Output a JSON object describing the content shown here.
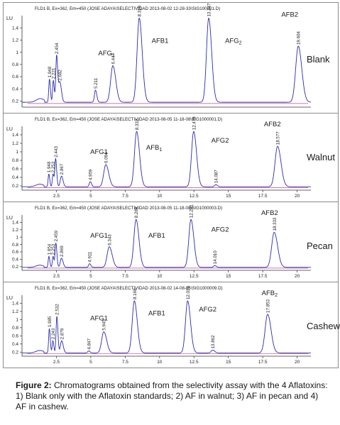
{
  "caption": {
    "label": "Figure 2:",
    "text": "Chromatograms obtained from the selectivity assay with the 4 Aflatoxins: 1) Blank only with the Aflatoxin standards; 2) AF in walnut; 3) AF in pecan and 4) AF in cashew."
  },
  "colors": {
    "trace": "#2b2bb0",
    "baseline": "#c0449a",
    "axis": "#333333",
    "text": "#1a1a1a"
  },
  "chart_data": [
    {
      "type": "line",
      "header": "FLD1 B, Ex=362, Em=450 (JOSE ADAYA\\SELECTIVIDAD 2013-08-02 12-28-33\\SIG100001.D)",
      "sample_label": "Blank",
      "y_unit": "LU",
      "y_ticks": [
        "0.2",
        "0.4",
        "0.6",
        "0.8",
        "1",
        "1.2",
        "1.4"
      ],
      "x_ticks": [],
      "ylim": [
        0.1,
        1.6
      ],
      "xlim": [
        0,
        20.5
      ],
      "baseline": 0.18,
      "peaks": [
        {
          "rt": 1.948,
          "height": 0.38,
          "width": 0.07
        },
        {
          "rt": 2.221,
          "height": 0.36,
          "width": 0.07
        },
        {
          "rt": 2.454,
          "height": 0.77,
          "width": 0.08
        },
        {
          "rt": 2.682,
          "height": 0.33,
          "width": 0.12
        },
        {
          "rt": 5.211,
          "height": 0.2,
          "width": 0.1
        },
        {
          "rt": 6.447,
          "height": 0.6,
          "width": 0.22
        },
        {
          "rt": 8.319,
          "height": 1.38,
          "width": 0.22
        },
        {
          "rt": 13.247,
          "height": 1.38,
          "width": 0.22
        },
        {
          "rt": 19.604,
          "height": 0.92,
          "width": 0.26
        }
      ],
      "compound_labels": [
        {
          "text": "AFG",
          "sub": "1",
          "rt": 6.0,
          "lu": 0.95
        },
        {
          "text": "AFB1",
          "rt": 9.8,
          "lu": 1.15
        },
        {
          "text": "AFG",
          "sub": "2",
          "rt": 15.0,
          "lu": 1.15
        },
        {
          "text": "AFB2",
          "rt": 19.0,
          "lu": 1.58
        }
      ]
    },
    {
      "type": "line",
      "header": "FLD1 B, Ex=362, Em=450 (JOSE ADAYA\\SELECTIVIDAD 2013-08-05 11-18-08\\SIG1000001.D)",
      "sample_label": "Walnut",
      "y_unit": "LU",
      "y_ticks": [
        "0.2",
        "0.4",
        "0.6",
        "0.8",
        "1",
        "1.2",
        "1.4"
      ],
      "x_ticks": [
        "2.5",
        "5",
        "7.5",
        "10",
        "12.5",
        "15",
        "17.5",
        "20"
      ],
      "ylim": [
        0.1,
        1.6
      ],
      "xlim": [
        0,
        21
      ],
      "baseline": 0.18,
      "peaks": [
        {
          "rt": 1.948,
          "height": 0.3,
          "width": 0.07
        },
        {
          "rt": 2.253,
          "height": 0.3,
          "width": 0.07
        },
        {
          "rt": 2.443,
          "height": 0.66,
          "width": 0.08
        },
        {
          "rt": 2.867,
          "height": 0.25,
          "width": 0.12
        },
        {
          "rt": 4.959,
          "height": 0.12,
          "width": 0.1
        },
        {
          "rt": 6.094,
          "height": 0.52,
          "width": 0.22
        },
        {
          "rt": 8.332,
          "height": 1.3,
          "width": 0.22
        },
        {
          "rt": 12.479,
          "height": 1.3,
          "width": 0.22
        },
        {
          "rt": 14.087,
          "height": 0.05,
          "width": 0.12
        },
        {
          "rt": 18.577,
          "height": 0.95,
          "width": 0.26
        }
      ],
      "compound_labels": [
        {
          "text": "AFG1",
          "rt": 5.6,
          "lu": 0.95
        },
        {
          "text": "AFB",
          "sub": "1",
          "rt": 9.6,
          "lu": 1.05
        },
        {
          "text": "AFG2",
          "rt": 14.4,
          "lu": 1.22
        },
        {
          "text": "AFB2",
          "rt": 18.2,
          "lu": 1.6
        }
      ]
    },
    {
      "type": "line",
      "header": "FLD1 B, Ex=362, Em=450 (JOSE ADAYA\\SELECTIVIDAD 2013-08-05 11-18-08\\SIG1000003.D)",
      "sample_label": "Pecan",
      "y_unit": "LU",
      "y_ticks": [
        "0.2",
        "0.4",
        "0.6",
        "0.8",
        "1",
        "1.2",
        "1.4"
      ],
      "x_ticks": [
        "2.5",
        "5",
        "7.5",
        "10",
        "12.5",
        "15",
        "17.5",
        "20"
      ],
      "ylim": [
        0.1,
        1.6
      ],
      "xlim": [
        0,
        21
      ],
      "baseline": 0.18,
      "peaks": [
        {
          "rt": 1.954,
          "height": 0.3,
          "width": 0.07
        },
        {
          "rt": 2.253,
          "height": 0.3,
          "width": 0.07
        },
        {
          "rt": 2.459,
          "height": 0.66,
          "width": 0.08
        },
        {
          "rt": 2.869,
          "height": 0.25,
          "width": 0.12
        },
        {
          "rt": 4.911,
          "height": 0.1,
          "width": 0.1
        },
        {
          "rt": 6.343,
          "height": 0.56,
          "width": 0.22
        },
        {
          "rt": 8.289,
          "height": 1.3,
          "width": 0.22
        },
        {
          "rt": 12.281,
          "height": 1.3,
          "width": 0.22
        },
        {
          "rt": 14.01,
          "height": 0.05,
          "width": 0.12
        },
        {
          "rt": 18.333,
          "height": 0.95,
          "width": 0.26
        }
      ],
      "compound_labels": [
        {
          "text": "AFG1",
          "rt": 5.6,
          "lu": 0.98
        },
        {
          "text": "AFB1",
          "rt": 9.8,
          "lu": 0.98
        },
        {
          "text": "AFG2",
          "rt": 14.4,
          "lu": 1.15
        },
        {
          "text": "AFB2",
          "rt": 18.0,
          "lu": 1.6
        }
      ]
    },
    {
      "type": "line",
      "header": "FLD1 B, Ex=362, Em=450 (JOSE ADAYA\\SELECTIVIDAD 2013-08-02 14-08-05\\SIG1000009.D)",
      "sample_label": "Cashew",
      "y_unit": "LU",
      "y_ticks": [
        "0.2",
        "0.4",
        "0.6",
        "0.8",
        "1",
        "1.2",
        "1.4"
      ],
      "x_ticks": [
        "2.5",
        "5",
        "7.5",
        "10",
        "12.5",
        "15",
        "17.5",
        "20"
      ],
      "ylim": [
        0.1,
        1.6
      ],
      "xlim": [
        0,
        21
      ],
      "baseline": 0.18,
      "peaks": [
        {
          "rt": 1.985,
          "height": 0.6,
          "width": 0.07
        },
        {
          "rt": 2.243,
          "height": 0.3,
          "width": 0.07
        },
        {
          "rt": 2.532,
          "height": 0.9,
          "width": 0.08
        },
        {
          "rt": 2.879,
          "height": 0.3,
          "width": 0.12
        },
        {
          "rt": 4.847,
          "height": 0.05,
          "width": 0.1
        },
        {
          "rt": 5.945,
          "height": 0.52,
          "width": 0.22
        },
        {
          "rt": 8.168,
          "height": 1.28,
          "width": 0.22
        },
        {
          "rt": 12.039,
          "height": 1.28,
          "width": 0.22
        },
        {
          "rt": 13.862,
          "height": 0.07,
          "width": 0.15
        },
        {
          "rt": 17.853,
          "height": 0.95,
          "width": 0.26
        }
      ],
      "compound_labels": [
        {
          "text": "AFG1",
          "rt": 5.6,
          "lu": 0.98
        },
        {
          "text": "AFB1",
          "rt": 9.8,
          "lu": 1.1
        },
        {
          "text": "AFG2",
          "rt": 13.5,
          "lu": 1.2
        },
        {
          "text": "AFB",
          "sub": "2",
          "rt": 18.0,
          "lu": 1.6
        }
      ]
    }
  ]
}
